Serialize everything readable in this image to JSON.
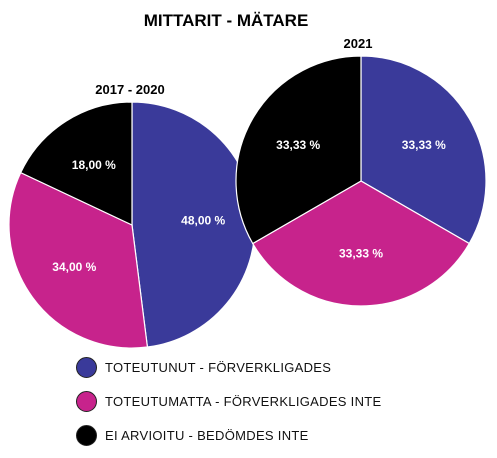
{
  "chart_data": {
    "type": "pie",
    "title": "MITTARIT - MÄTARE",
    "legend_position": "bottom",
    "legend": [
      {
        "label": "TOTEUTUNUT - FÖRVERKLIGADES",
        "color": "#3a3a9a"
      },
      {
        "label": "TOTEUTUMATTA - FÖRVERKLIGADES INTE",
        "color": "#c7238c"
      },
      {
        "label": "EI ARVIOITU - BEDÖMDES INTE",
        "color": "#000000"
      }
    ],
    "pies": [
      {
        "title": "2017 - 2020",
        "slices": [
          {
            "value": 48.0,
            "label": "48,00 %",
            "color": "#3a3a9a"
          },
          {
            "value": 34.0,
            "label": "34,00 %",
            "color": "#c7238c"
          },
          {
            "value": 18.0,
            "label": "18,00 %",
            "color": "#000000"
          }
        ]
      },
      {
        "title": "2021",
        "slices": [
          {
            "value": 33.33,
            "label": "33,33 %",
            "color": "#3a3a9a"
          },
          {
            "value": 33.33,
            "label": "33,33 %",
            "color": "#c7238c"
          },
          {
            "value": 33.33,
            "label": "33,33 %",
            "color": "#000000"
          }
        ]
      }
    ]
  }
}
